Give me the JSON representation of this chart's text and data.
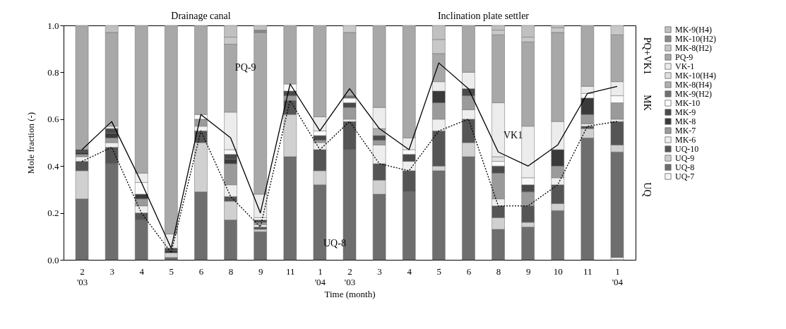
{
  "chart_data": {
    "type": "bar",
    "stacked": true,
    "xlabel": "Time (month)",
    "ylabel": "Mole fraction (-)",
    "categories": [
      "2\n'03",
      "3",
      "4",
      "5",
      "6",
      "8",
      "9",
      "11",
      "1\n'04",
      "2\n'03",
      "3",
      "4",
      "5",
      "6",
      "8",
      "9",
      "10",
      "11",
      "1\n'04"
    ],
    "ylim": [
      0,
      1
    ],
    "yticks": [
      {
        "value": 0,
        "label": "0.0"
      },
      0.2,
      0.4,
      0.6,
      0.8,
      {
        "value": 1,
        "label": "1.0"
      }
    ],
    "legend": "right",
    "grid": false,
    "annotations": [
      "Drainage canal",
      "Inclination plate settler",
      "PQ-9",
      "UQ-8",
      "VK1",
      "PQ+VK1",
      "MK",
      "UQ"
    ],
    "series": [
      {
        "name": "UQ-7",
        "color": "#f4f4f4",
        "values": [
          0,
          0,
          0,
          0,
          0,
          0,
          0,
          0,
          0,
          0,
          0,
          0,
          0,
          0,
          0,
          0,
          0,
          0,
          0.01
        ]
      },
      {
        "name": "UQ-8",
        "color": "#6e6e6e",
        "values": [
          0.26,
          0.41,
          0.17,
          0.01,
          0.29,
          0.17,
          0.12,
          0.44,
          0.32,
          0.47,
          0.28,
          0.29,
          0.38,
          0.44,
          0.13,
          0.14,
          0.21,
          0.52,
          0.45
        ]
      },
      {
        "name": "UQ-9",
        "color": "#d0d0d0",
        "values": [
          0.12,
          0,
          0,
          0.02,
          0.21,
          0.08,
          0.01,
          0.18,
          0.06,
          0,
          0.06,
          0,
          0.02,
          0.06,
          0.05,
          0.02,
          0.03,
          0.04,
          0.03
        ]
      },
      {
        "name": "UQ-10",
        "color": "#555555",
        "values": [
          0.04,
          0.07,
          0.03,
          0,
          0.05,
          0.02,
          0.01,
          0.06,
          0.09,
          0.12,
          0.07,
          0.09,
          0.15,
          0.1,
          0.05,
          0.07,
          0.08,
          0.01,
          0.1
        ]
      },
      {
        "name": "MK-6",
        "color": "#eeeeee",
        "values": [
          0.02,
          0.02,
          0.03,
          0,
          0.02,
          0.05,
          0.01,
          0,
          0.03,
          0.01,
          0.08,
          0.04,
          0.05,
          0.04,
          0.03,
          0,
          0.03,
          0.01,
          0.01
        ]
      },
      {
        "name": "MK-7",
        "color": "#9a9a9a",
        "values": [
          0.01,
          0.02,
          0.03,
          0,
          0.03,
          0.09,
          0.01,
          0.02,
          0.01,
          0.05,
          0.02,
          0,
          0.07,
          0.06,
          0.11,
          0.06,
          0.05,
          0.04,
          0.07
        ]
      },
      {
        "name": "MK-8",
        "color": "#3a3a3a",
        "values": [
          0.01,
          0.02,
          0.02,
          0.01,
          0,
          0.02,
          0,
          0,
          0,
          0,
          0,
          0,
          0.05,
          0,
          0,
          0,
          0.07,
          0.07,
          0
        ]
      },
      {
        "name": "MK-9",
        "color": "#4a4a4a",
        "values": [
          0.01,
          0.02,
          0,
          0.01,
          0,
          0.02,
          0.01,
          0.02,
          0.02,
          0.02,
          0.02,
          0.03,
          0,
          0.03,
          0.03,
          0.03,
          0,
          0,
          0
        ]
      },
      {
        "name": "MK-10",
        "color": "#fafafa",
        "values": [
          0,
          0,
          0.05,
          0,
          0.02,
          0.02,
          0.01,
          0.03,
          0.02,
          0.02,
          0,
          0.02,
          0,
          0,
          0.02,
          0.03,
          0,
          0.02,
          0.03
        ]
      },
      {
        "name": "MK-9(H2)",
        "color": "#707070",
        "values": [
          0,
          0,
          0,
          0,
          0,
          0,
          0,
          0,
          0,
          0.01,
          0,
          0,
          0,
          0,
          0,
          0,
          0,
          0,
          0
        ]
      },
      {
        "name": "MK-8(H4)",
        "color": "#b0b0b0",
        "values": [
          0,
          0,
          0,
          0,
          0,
          0,
          0,
          0,
          0,
          0,
          0.03,
          0,
          0,
          0,
          0,
          0,
          0,
          0,
          0
        ]
      },
      {
        "name": "MK-10(H4)",
        "color": "#e0e0e0",
        "values": [
          0,
          0,
          0,
          0,
          0,
          0,
          0,
          0,
          0,
          0,
          0,
          0,
          0,
          0,
          0.02,
          0,
          0,
          0,
          0
        ]
      },
      {
        "name": "VK-1",
        "color": "#ececec",
        "values": [
          0,
          0.01,
          0.04,
          0.06,
          0,
          0.16,
          0.1,
          0,
          0.06,
          0,
          0.09,
          0.05,
          0.04,
          0.07,
          0.23,
          0.22,
          0.12,
          0.03,
          0.06
        ]
      },
      {
        "name": "PQ-9",
        "color": "#a8a8a8",
        "values": [
          0.53,
          0.4,
          0.63,
          0.89,
          0.38,
          0.29,
          0.69,
          0.25,
          0.39,
          0.27,
          0.35,
          0.48,
          0.12,
          0.2,
          0.29,
          0.36,
          0.38,
          0.26,
          0.2
        ]
      },
      {
        "name": "MK-8(H2)",
        "color": "#c8c8c8",
        "values": [
          0,
          0,
          0,
          0,
          0,
          0.03,
          0,
          0,
          0,
          0.03,
          0,
          0,
          0.06,
          0,
          0.02,
          0.02,
          0.02,
          0,
          0.04
        ]
      },
      {
        "name": "MK-10(H2)",
        "color": "#888888",
        "values": [
          0,
          0,
          0,
          0,
          0,
          0,
          0.01,
          0,
          0,
          0,
          0,
          0,
          0,
          0,
          0,
          0,
          0,
          0,
          0
        ]
      },
      {
        "name": "MK-9(H4)",
        "color": "#c0c0c0",
        "values": [
          0,
          0.03,
          0,
          0,
          0,
          0.05,
          0.02,
          0,
          0,
          0,
          0,
          0,
          0.06,
          0,
          0.02,
          0.05,
          0.01,
          0,
          0
        ]
      },
      {
        "type": "line",
        "color": "#000000",
        "line_style": "solid",
        "values": [
          0.47,
          0.59,
          0.33,
          0.05,
          0.62,
          0.52,
          0.2,
          0.75,
          0.55,
          0.73,
          0.56,
          0.47,
          0.84,
          0.73,
          0.46,
          0.4,
          0.49,
          0.71,
          0.74
        ]
      },
      {
        "type": "line",
        "color": "#000000",
        "line_style": "dotted",
        "values": [
          0.42,
          0.48,
          0.2,
          0.03,
          0.55,
          0.27,
          0.14,
          0.68,
          0.47,
          0.59,
          0.41,
          0.38,
          0.55,
          0.6,
          0.23,
          0.23,
          0.32,
          0.57,
          0.59
        ]
      }
    ]
  }
}
